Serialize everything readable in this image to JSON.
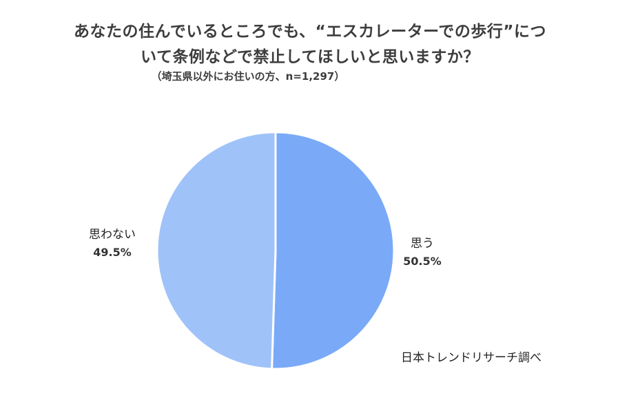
{
  "title_line1": "あなたの住んでいるところでも、“エスカレーターでの歩行”につ",
  "title_line2": "いて条例などで禁止してほしいと思いますか？",
  "subtitle": "（埼玉県以外にお住いの方、n=1,297）",
  "credit": "日本トレンドリサーチ調べ",
  "colors": {
    "slice_omou": "#7aaaf7",
    "slice_omowanai": "#9fc2f9",
    "slice_border": "#ffffff"
  },
  "chart_data": {
    "type": "pie",
    "title": "あなたの住んでいるところでも、“エスカレーターでの歩行”について条例などで禁止してほしいと思いますか？",
    "subtitle": "（埼玉県以外にお住いの方、n=1,297）",
    "slices": [
      {
        "label": "思う",
        "value": 50.5,
        "display": "50.5%"
      },
      {
        "label": "思わない",
        "value": 49.5,
        "display": "49.5%"
      }
    ],
    "legend": "none"
  }
}
